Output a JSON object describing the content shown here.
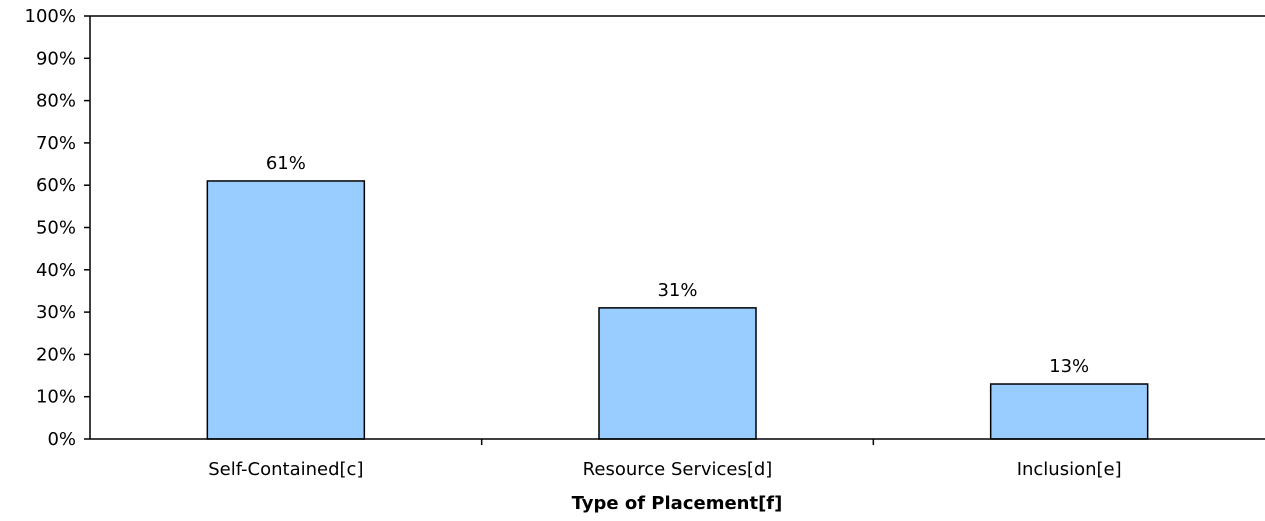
{
  "chart_data": {
    "type": "bar",
    "categories": [
      "Self-Contained[c]",
      "Resource Services[d]",
      "Inclusion[e]"
    ],
    "values": [
      61,
      31,
      13
    ],
    "data_labels": [
      "61%",
      "31%",
      "13%"
    ],
    "title": "",
    "xlabel": "Type of Placement[f]",
    "ylabel": "",
    "ylim": [
      0,
      100
    ],
    "yticks": [
      0,
      10,
      20,
      30,
      40,
      50,
      60,
      70,
      80,
      90,
      100
    ],
    "ytick_labels": [
      "0%",
      "10%",
      "20%",
      "30%",
      "40%",
      "50%",
      "60%",
      "70%",
      "80%",
      "90%",
      "100%"
    ],
    "grid": false,
    "legend": "none",
    "colors": {
      "bar_fill": "#99CCFF",
      "bar_stroke": "#000000",
      "axis": "#000000"
    }
  }
}
